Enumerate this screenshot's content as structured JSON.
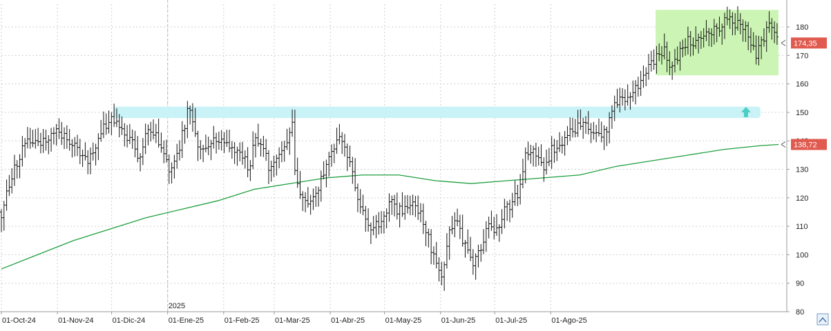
{
  "chart_data": {
    "type": "ohlc",
    "x_tick_labels": [
      "01-Oct-24",
      "01-Nov-24",
      "01-Dic-24",
      "01-Ene-25",
      "01-Feb-25",
      "01-Mar-25",
      "01-Abr-25",
      "01-May-25",
      "01-Jun-25",
      "01-Jul-25",
      "01-Ago-25"
    ],
    "year_label": "2025",
    "y_ticks": [
      80,
      90,
      100,
      110,
      120,
      130,
      140,
      150,
      160,
      170,
      180
    ],
    "ylim": [
      80,
      188
    ],
    "grid": true,
    "grid_style": "dotted",
    "last_price": {
      "value": 174.35,
      "label": "174,35",
      "color": "#e05a4f"
    },
    "moving_average_last": {
      "value": 138.72,
      "label": "138,72",
      "color": "#e05a4f"
    },
    "price_path": [
      [
        0,
        115
      ],
      [
        3,
        122
      ],
      [
        10,
        135
      ],
      [
        17,
        141
      ],
      [
        25,
        139
      ],
      [
        30,
        144
      ],
      [
        40,
        139
      ],
      [
        47,
        132
      ],
      [
        55,
        143
      ],
      [
        62,
        148
      ],
      [
        68,
        141
      ],
      [
        72,
        142
      ],
      [
        76,
        134
      ],
      [
        80,
        141
      ],
      [
        83,
        144
      ],
      [
        88,
        138
      ],
      [
        92,
        131
      ],
      [
        96,
        131
      ],
      [
        100,
        142
      ],
      [
        104,
        152
      ],
      [
        106,
        145
      ],
      [
        109,
        136
      ],
      [
        113,
        138
      ],
      [
        118,
        140
      ],
      [
        123,
        140
      ],
      [
        128,
        138
      ],
      [
        133,
        135
      ],
      [
        137,
        131
      ],
      [
        141,
        142
      ],
      [
        143,
        140
      ],
      [
        148,
        131
      ],
      [
        153,
        135
      ],
      [
        158,
        139
      ],
      [
        161,
        146
      ],
      [
        162,
        130
      ],
      [
        165,
        120
      ],
      [
        170,
        116
      ],
      [
        175,
        123
      ],
      [
        180,
        132
      ],
      [
        185,
        140
      ],
      [
        188,
        142
      ],
      [
        192,
        133
      ],
      [
        196,
        124
      ],
      [
        200,
        115
      ],
      [
        205,
        108
      ],
      [
        210,
        112
      ],
      [
        215,
        118
      ],
      [
        220,
        115
      ],
      [
        225,
        117
      ],
      [
        228,
        120
      ],
      [
        233,
        113
      ],
      [
        237,
        104
      ],
      [
        242,
        95
      ],
      [
        244,
        91
      ],
      [
        248,
        108
      ],
      [
        252,
        113
      ],
      [
        256,
        104
      ],
      [
        261,
        98
      ],
      [
        266,
        103
      ],
      [
        270,
        111
      ],
      [
        274,
        108
      ],
      [
        278,
        115
      ],
      [
        282,
        118
      ],
      [
        286,
        121
      ],
      [
        290,
        135
      ],
      [
        296,
        136
      ],
      [
        300,
        131
      ],
      [
        305,
        137
      ],
      [
        310,
        140
      ],
      [
        315,
        143
      ],
      [
        320,
        145
      ],
      [
        325,
        145
      ],
      [
        330,
        144
      ],
      [
        333,
        142
      ],
      [
        338,
        150
      ],
      [
        342,
        156
      ],
      [
        346,
        155
      ],
      [
        350,
        158
      ],
      [
        354,
        162
      ],
      [
        358,
        165
      ],
      [
        360,
        167
      ],
      [
        363,
        170
      ],
      [
        367,
        172
      ],
      [
        371,
        165
      ],
      [
        375,
        171
      ],
      [
        380,
        176
      ],
      [
        385,
        174
      ],
      [
        390,
        180
      ],
      [
        395,
        178
      ],
      [
        400,
        183
      ],
      [
        405,
        182
      ],
      [
        410,
        180
      ],
      [
        413,
        178
      ],
      [
        417,
        170
      ],
      [
        421,
        175
      ],
      [
        425,
        181
      ],
      [
        428,
        177
      ],
      [
        430,
        174.35
      ]
    ],
    "total_days": 430,
    "tick_days": [
      0,
      31,
      61,
      92,
      123,
      151,
      182,
      212,
      243,
      273,
      304
    ],
    "moving_average": [
      [
        0,
        95
      ],
      [
        20,
        100
      ],
      [
        40,
        105
      ],
      [
        60,
        109
      ],
      [
        80,
        113
      ],
      [
        100,
        116
      ],
      [
        120,
        119
      ],
      [
        140,
        123
      ],
      [
        160,
        125
      ],
      [
        180,
        127
      ],
      [
        200,
        128
      ],
      [
        220,
        128
      ],
      [
        240,
        126
      ],
      [
        260,
        125
      ],
      [
        280,
        126
      ],
      [
        300,
        127
      ],
      [
        320,
        128
      ],
      [
        340,
        131
      ],
      [
        360,
        133
      ],
      [
        380,
        135
      ],
      [
        400,
        137
      ],
      [
        420,
        138.3
      ],
      [
        430,
        138.72
      ]
    ],
    "annotations": {
      "resistance_band": {
        "start_day": 62,
        "end_day": 420,
        "low": 148,
        "high": 152,
        "color": "#c9f3f7"
      },
      "breakout_box": {
        "start_day": 362,
        "end_day": 430,
        "low": 163,
        "high": 186,
        "color": "#ccf5b5"
      },
      "up_arrow": {
        "day": 412,
        "value": 150,
        "color": "#4ecdc4"
      },
      "year_divider_day": 92
    },
    "colors": {
      "bars": "#111111",
      "moving_average": "#1e9e3e",
      "grid": "#cfcfcf",
      "axis": "#9a9a9a"
    }
  }
}
